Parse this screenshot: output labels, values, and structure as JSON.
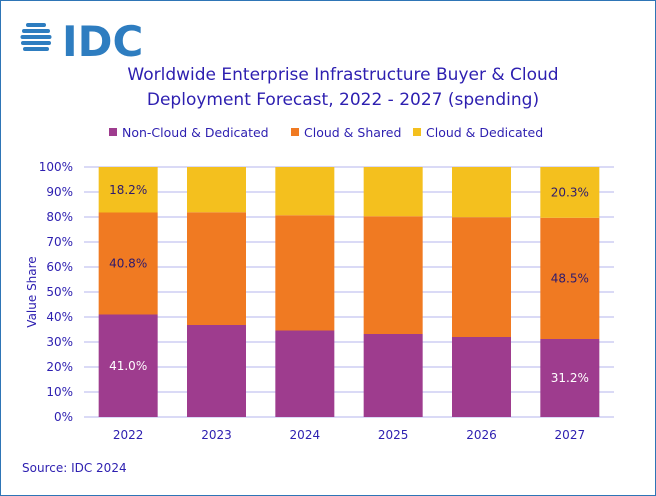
{
  "logo": {
    "text": "IDC",
    "color": "#2e7dc0"
  },
  "source": "Source: IDC 2024",
  "chart_data": {
    "type": "bar",
    "stacked": true,
    "title_lines": [
      "Worldwide Enterprise Infrastructure Buyer & Cloud",
      "Deployment Forecast, 2022 - 2027 (spending)"
    ],
    "ylabel": "Value  Share",
    "xlabel": "",
    "ylim": [
      0,
      100
    ],
    "yticks": [
      "0%",
      "10%",
      "20%",
      "30%",
      "40%",
      "50%",
      "60%",
      "70%",
      "80%",
      "90%",
      "100%"
    ],
    "grid": true,
    "legend_position": "top",
    "categories": [
      "2022",
      "2023",
      "2024",
      "2025",
      "2026",
      "2027"
    ],
    "series": [
      {
        "name": "Non-Cloud & Dedicated",
        "color": "#9e3c8e",
        "label_color": "#ffffff",
        "values": [
          41.0,
          36.8,
          34.6,
          33.2,
          32.0,
          31.2
        ],
        "labels": [
          "41.0%",
          "",
          "",
          "",
          "",
          "31.2%"
        ]
      },
      {
        "name": "Cloud & Shared",
        "color": "#f07a22",
        "label_color": "#2d1a6e",
        "values": [
          40.8,
          45.1,
          46.1,
          47.1,
          47.9,
          48.5
        ],
        "labels": [
          "40.8%",
          "",
          "",
          "",
          "",
          "48.5%"
        ]
      },
      {
        "name": "Cloud & Dedicated",
        "color": "#f4c01e",
        "label_color": "#2d1a6e",
        "values": [
          18.2,
          18.1,
          19.3,
          19.7,
          20.1,
          20.3
        ],
        "labels": [
          "18.2%",
          "",
          "",
          "",
          "",
          "20.3%"
        ]
      }
    ]
  }
}
